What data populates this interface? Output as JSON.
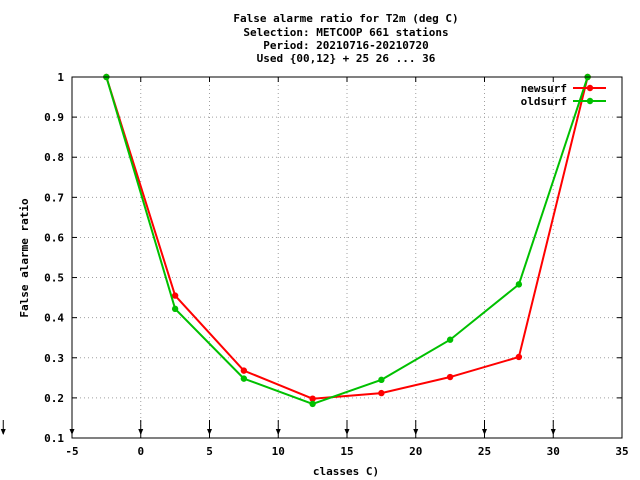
{
  "chart_data": {
    "type": "line",
    "title_lines": [
      "False alarme ratio  for T2m (deg C)",
      "Selection: METCOOP    661 stations",
      "Period: 20210716-20210720",
      "Used {00,12} + 25 26 ... 36"
    ],
    "xlabel": "classes C)",
    "ylabel": "False alarme ratio",
    "xlim": [
      -5,
      35
    ],
    "ylim": [
      0.1,
      1
    ],
    "x_ticks": [
      -5,
      0,
      5,
      10,
      15,
      20,
      25,
      30,
      35
    ],
    "x_tick_labels": [
      "-5",
      "0",
      "5",
      "10",
      "15",
      "20",
      "25",
      "30",
      "35"
    ],
    "y_ticks": [
      0.1,
      0.2,
      0.3,
      0.4,
      0.5,
      0.6,
      0.7,
      0.8,
      0.9,
      1
    ],
    "y_tick_labels": [
      "0.1",
      "0.2",
      "0.3",
      "0.4",
      "0.5",
      "0.6",
      "0.7",
      "0.8",
      "0.9",
      "1"
    ],
    "grid": true,
    "legend_position": "top-right",
    "class_arrows_x": [
      -10,
      -5,
      0,
      5,
      10,
      15,
      20,
      25,
      30
    ],
    "series": [
      {
        "name": "newsurf",
        "color": "#ff0000",
        "x": [
          -2.5,
          2.5,
          7.5,
          12.5,
          17.5,
          22.5,
          27.5,
          32.5
        ],
        "values": [
          1.0,
          0.455,
          0.268,
          0.198,
          0.212,
          0.252,
          0.302,
          1.0
        ]
      },
      {
        "name": "oldsurf",
        "color": "#00c000",
        "x": [
          -2.5,
          2.5,
          7.5,
          12.5,
          17.5,
          22.5,
          27.5,
          32.5
        ],
        "values": [
          1.0,
          0.422,
          0.248,
          0.185,
          0.245,
          0.345,
          0.483,
          1.0
        ]
      }
    ]
  }
}
